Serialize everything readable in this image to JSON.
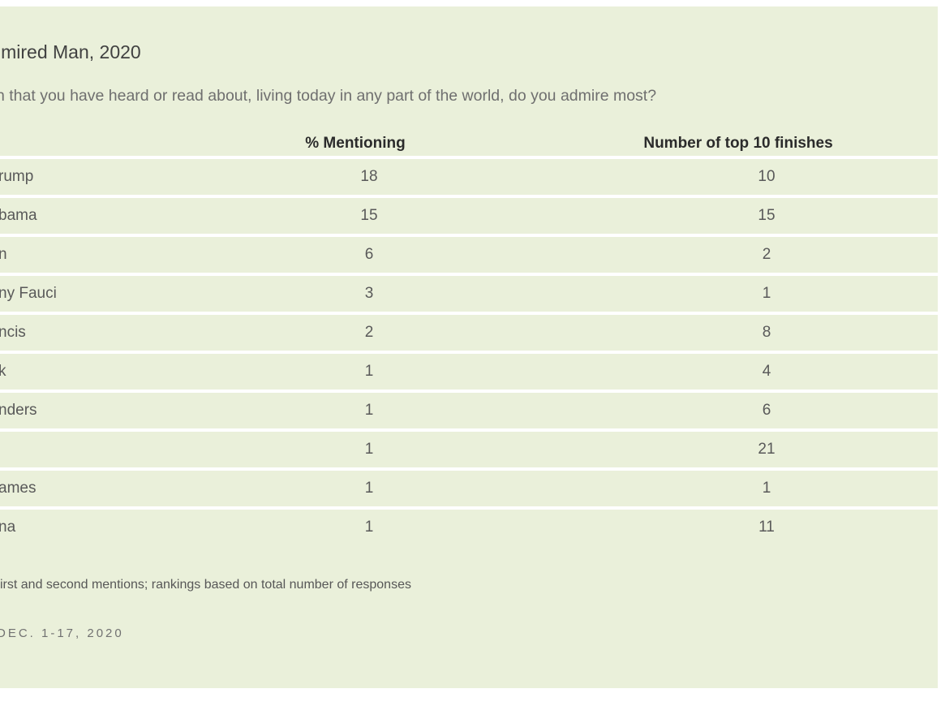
{
  "card": {
    "title": "lmired Man, 2020",
    "subtitle": "n that you have heard or read about, living today in any part of the world, do you admire most?",
    "columns": {
      "mentioning": "% Mentioning",
      "finishes": "Number of top 10 finishes"
    },
    "rows": [
      {
        "name": "rump",
        "mentioning": "18",
        "finishes": "10"
      },
      {
        "name": "bama",
        "mentioning": "15",
        "finishes": "15"
      },
      {
        "name": "n",
        "mentioning": "6",
        "finishes": "2"
      },
      {
        "name": "ny Fauci",
        "mentioning": "3",
        "finishes": "1"
      },
      {
        "name": "ncis",
        "mentioning": "2",
        "finishes": "8"
      },
      {
        "name": "k",
        "mentioning": "1",
        "finishes": "4"
      },
      {
        "name": "nders",
        "mentioning": "1",
        "finishes": "6"
      },
      {
        "name": "",
        "mentioning": "1",
        "finishes": "21"
      },
      {
        "name": "ames",
        "mentioning": "1",
        "finishes": "1"
      },
      {
        "name": "na",
        "mentioning": "1",
        "finishes": "11"
      }
    ],
    "note": "irst and second mentions; rankings based on total number of responses",
    "source": "DEC. 1-17, 2020"
  },
  "colors": {
    "panel_background": "#eaf0da",
    "row_separator": "#ffffff",
    "title_text": "#414141",
    "header_text": "#2b2b2b",
    "body_text": "#595959",
    "subtitle_text": "#6f6f6f"
  }
}
